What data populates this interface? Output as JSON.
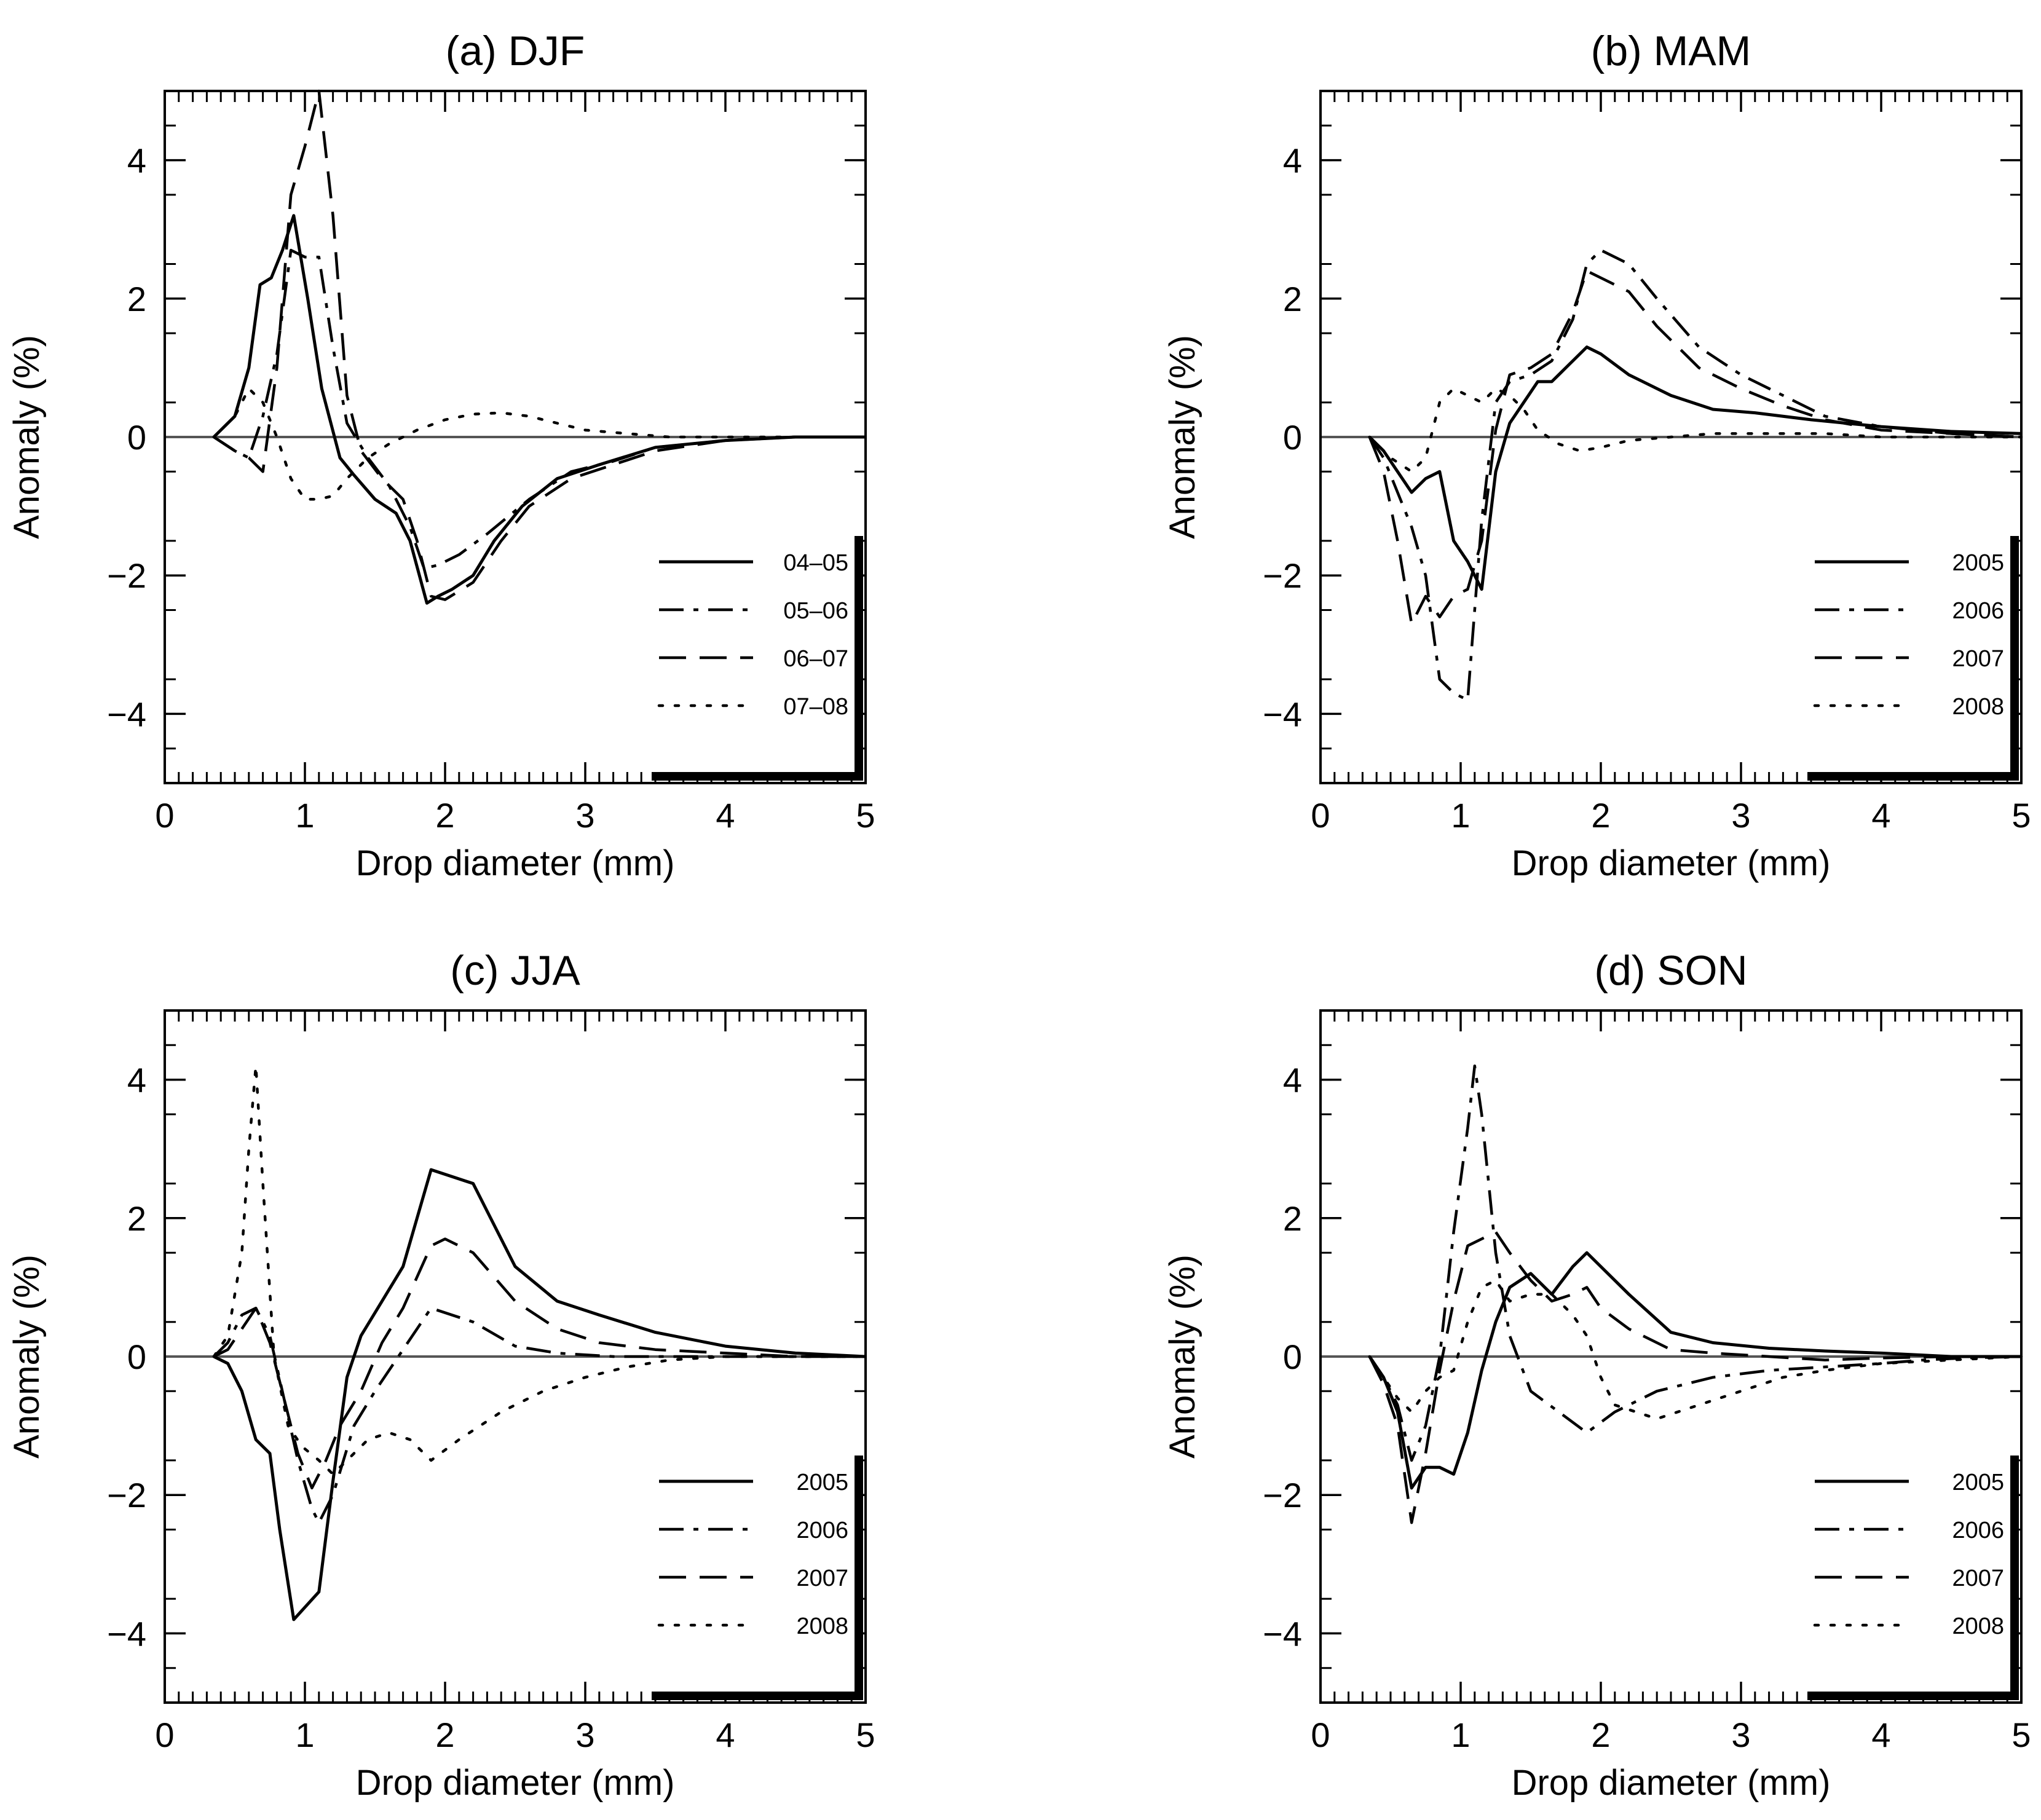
{
  "chart_data": [
    {
      "type": "line",
      "title": "(a) DJF",
      "xlabel": "Drop diameter (mm)",
      "ylabel": "Anomaly (%)",
      "xlim": [
        0,
        5
      ],
      "ylim": [
        -5,
        5
      ],
      "xticks": [
        "0",
        "1",
        "2",
        "3",
        "4",
        "5"
      ],
      "yticks": [
        "−4",
        "−2",
        "0",
        "2",
        "4"
      ],
      "zero_line": true,
      "legend_position": "lower-right",
      "series": [
        {
          "name": "04–05",
          "style": "solid",
          "x": [
            0.35,
            0.5,
            0.6,
            0.68,
            0.76,
            0.84,
            0.92,
            1.02,
            1.12,
            1.25,
            1.35,
            1.5,
            1.65,
            1.75,
            1.87,
            1.95,
            2.05,
            2.2,
            2.35,
            2.55,
            2.8,
            3.1,
            3.5,
            4.0,
            4.5,
            5.0
          ],
          "y": [
            0.0,
            0.3,
            1.0,
            2.2,
            2.3,
            2.7,
            3.2,
            2.0,
            0.7,
            -0.3,
            -0.55,
            -0.9,
            -1.1,
            -1.5,
            -2.4,
            -2.3,
            -2.2,
            -2.0,
            -1.5,
            -1.0,
            -0.6,
            -0.4,
            -0.15,
            -0.05,
            0.0,
            0.0
          ]
        },
        {
          "name": "05–06",
          "style": "dashdot",
          "x": [
            0.35,
            0.5,
            0.6,
            0.7,
            0.8,
            0.9,
            1.0,
            1.1,
            1.2,
            1.3,
            1.45,
            1.6,
            1.75,
            1.85,
            1.95,
            2.1,
            2.3,
            2.6,
            2.9,
            3.2,
            3.5,
            4.0,
            4.5,
            5.0
          ],
          "y": [
            0.0,
            -0.2,
            -0.3,
            0.3,
            1.2,
            2.7,
            2.6,
            2.6,
            1.3,
            0.2,
            -0.3,
            -0.7,
            -1.3,
            -1.9,
            -1.85,
            -1.7,
            -1.4,
            -0.9,
            -0.5,
            -0.35,
            -0.15,
            -0.05,
            0.0,
            0.0
          ]
        },
        {
          "name": "06–07",
          "style": "dashed",
          "x": [
            0.35,
            0.5,
            0.6,
            0.7,
            0.8,
            0.9,
            1.0,
            1.1,
            1.2,
            1.3,
            1.4,
            1.55,
            1.7,
            1.8,
            1.9,
            2.0,
            2.2,
            2.4,
            2.6,
            2.9,
            3.2,
            3.5,
            4.0,
            4.5,
            5.0
          ],
          "y": [
            0.0,
            -0.2,
            -0.3,
            -0.5,
            1.0,
            3.5,
            4.2,
            5.0,
            3.2,
            0.6,
            -0.2,
            -0.6,
            -0.9,
            -1.5,
            -2.3,
            -2.35,
            -2.1,
            -1.5,
            -1.0,
            -0.6,
            -0.4,
            -0.2,
            -0.05,
            0.0,
            0.0
          ]
        },
        {
          "name": "07–08",
          "style": "dotted",
          "x": [
            0.35,
            0.5,
            0.6,
            0.7,
            0.8,
            0.9,
            1.0,
            1.1,
            1.2,
            1.3,
            1.45,
            1.6,
            1.8,
            2.0,
            2.2,
            2.4,
            2.6,
            2.8,
            3.0,
            3.3,
            3.6,
            4.0,
            4.5,
            5.0
          ],
          "y": [
            0.0,
            0.3,
            0.7,
            0.5,
            0.0,
            -0.6,
            -0.9,
            -0.9,
            -0.85,
            -0.6,
            -0.3,
            -0.1,
            0.1,
            0.25,
            0.33,
            0.35,
            0.3,
            0.2,
            0.1,
            0.05,
            0.0,
            0.0,
            0.0,
            0.0
          ]
        }
      ]
    },
    {
      "type": "line",
      "title": "(b) MAM",
      "xlabel": "Drop diameter (mm)",
      "ylabel": "Anomaly (%)",
      "xlim": [
        0,
        5
      ],
      "ylim": [
        -5,
        5
      ],
      "xticks": [
        "0",
        "1",
        "2",
        "3",
        "4",
        "5"
      ],
      "yticks": [
        "−4",
        "−2",
        "0",
        "2",
        "4"
      ],
      "zero_line": true,
      "legend_position": "lower-right",
      "series": [
        {
          "name": "2005",
          "style": "solid",
          "x": [
            0.35,
            0.45,
            0.55,
            0.65,
            0.75,
            0.85,
            0.95,
            1.05,
            1.15,
            1.25,
            1.35,
            1.45,
            1.55,
            1.65,
            1.75,
            1.9,
            2.0,
            2.2,
            2.5,
            2.8,
            3.1,
            3.5,
            4.0,
            4.5,
            5.0
          ],
          "y": [
            0.0,
            -0.2,
            -0.5,
            -0.8,
            -0.6,
            -0.5,
            -1.5,
            -1.8,
            -2.2,
            -0.5,
            0.2,
            0.5,
            0.8,
            0.8,
            1.0,
            1.3,
            1.2,
            0.9,
            0.6,
            0.4,
            0.35,
            0.25,
            0.15,
            0.08,
            0.05
          ]
        },
        {
          "name": "2006",
          "style": "dashdot",
          "x": [
            0.35,
            0.45,
            0.55,
            0.65,
            0.75,
            0.85,
            0.95,
            1.05,
            1.15,
            1.25,
            1.35,
            1.5,
            1.65,
            1.8,
            1.9,
            2.0,
            2.2,
            2.4,
            2.7,
            3.0,
            3.3,
            3.6,
            4.0,
            4.5,
            5.0
          ],
          "y": [
            0.0,
            -0.3,
            -0.8,
            -1.3,
            -2.0,
            -3.5,
            -3.7,
            -3.8,
            -1.2,
            0.5,
            0.8,
            0.9,
            1.1,
            1.7,
            2.5,
            2.7,
            2.5,
            2.0,
            1.3,
            0.9,
            0.6,
            0.3,
            0.15,
            0.05,
            0.0
          ]
        },
        {
          "name": "2007",
          "style": "dashed",
          "x": [
            0.35,
            0.45,
            0.55,
            0.65,
            0.75,
            0.85,
            0.95,
            1.05,
            1.15,
            1.25,
            1.35,
            1.5,
            1.65,
            1.8,
            1.9,
            2.0,
            2.2,
            2.4,
            2.7,
            3.0,
            3.3,
            3.6,
            4.0,
            4.5,
            5.0
          ],
          "y": [
            0.0,
            -0.5,
            -1.5,
            -2.7,
            -2.3,
            -2.6,
            -2.3,
            -2.2,
            -1.5,
            0.1,
            0.9,
            1.0,
            1.2,
            1.8,
            2.4,
            2.3,
            2.1,
            1.6,
            1.0,
            0.7,
            0.45,
            0.25,
            0.1,
            0.05,
            0.0
          ]
        },
        {
          "name": "2008",
          "style": "dotted",
          "x": [
            0.35,
            0.5,
            0.65,
            0.75,
            0.85,
            0.95,
            1.05,
            1.15,
            1.25,
            1.35,
            1.45,
            1.55,
            1.7,
            1.85,
            2.0,
            2.2,
            2.5,
            2.8,
            3.2,
            3.6,
            4.0,
            4.5,
            5.0
          ],
          "y": [
            0.0,
            -0.3,
            -0.5,
            -0.3,
            0.5,
            0.7,
            0.6,
            0.5,
            0.7,
            0.6,
            0.4,
            0.1,
            -0.1,
            -0.2,
            -0.15,
            -0.05,
            0.0,
            0.05,
            0.05,
            0.05,
            0.0,
            0.0,
            0.0
          ]
        }
      ]
    },
    {
      "type": "line",
      "title": "(c) JJA",
      "xlabel": "Drop diameter (mm)",
      "ylabel": "Anomaly (%)",
      "xlim": [
        0,
        5
      ],
      "ylim": [
        -5,
        5
      ],
      "xticks": [
        "0",
        "1",
        "2",
        "3",
        "4",
        "5"
      ],
      "yticks": [
        "−4",
        "−2",
        "0",
        "2",
        "4"
      ],
      "zero_line": true,
      "legend_position": "lower-right",
      "series": [
        {
          "name": "2005",
          "style": "solid",
          "x": [
            0.35,
            0.45,
            0.55,
            0.65,
            0.75,
            0.82,
            0.92,
            1.1,
            1.2,
            1.3,
            1.4,
            1.55,
            1.7,
            1.9,
            2.2,
            2.5,
            2.8,
            3.1,
            3.5,
            4.0,
            4.5,
            5.0
          ],
          "y": [
            0.0,
            -0.1,
            -0.5,
            -1.2,
            -1.4,
            -2.5,
            -3.8,
            -3.4,
            -1.8,
            -0.3,
            0.3,
            0.8,
            1.3,
            2.7,
            2.5,
            1.3,
            0.8,
            0.6,
            0.35,
            0.15,
            0.05,
            0.0
          ]
        },
        {
          "name": "2006",
          "style": "dashdot",
          "x": [
            0.35,
            0.45,
            0.55,
            0.65,
            0.75,
            0.85,
            0.95,
            1.05,
            1.1,
            1.2,
            1.35,
            1.5,
            1.7,
            1.9,
            2.2,
            2.5,
            2.8,
            3.2,
            3.6,
            4.0,
            4.5,
            5.0
          ],
          "y": [
            0.0,
            0.2,
            0.6,
            0.7,
            0.3,
            -0.6,
            -1.5,
            -2.2,
            -2.4,
            -2.0,
            -1.0,
            -0.5,
            0.1,
            0.7,
            0.5,
            0.15,
            0.05,
            0.0,
            0.0,
            0.0,
            0.0,
            0.0
          ]
        },
        {
          "name": "2007",
          "style": "dashed",
          "x": [
            0.35,
            0.45,
            0.55,
            0.65,
            0.75,
            0.85,
            0.95,
            1.05,
            1.15,
            1.25,
            1.4,
            1.55,
            1.7,
            1.9,
            2.0,
            2.2,
            2.5,
            2.8,
            3.1,
            3.5,
            4.0,
            4.5,
            5.0
          ],
          "y": [
            0.0,
            0.1,
            0.4,
            0.7,
            0.2,
            -0.6,
            -1.4,
            -1.9,
            -1.5,
            -1.0,
            -0.5,
            0.2,
            0.7,
            1.6,
            1.7,
            1.5,
            0.8,
            0.4,
            0.2,
            0.1,
            0.05,
            0.0,
            0.0
          ]
        },
        {
          "name": "2008",
          "style": "dotted",
          "x": [
            0.35,
            0.45,
            0.55,
            0.6,
            0.65,
            0.7,
            0.78,
            0.88,
            0.98,
            1.1,
            1.2,
            1.3,
            1.45,
            1.6,
            1.75,
            1.9,
            2.1,
            2.4,
            2.7,
            3.0,
            3.3,
            3.6,
            4.0,
            4.5,
            5.0
          ],
          "y": [
            0.0,
            0.3,
            1.5,
            3.0,
            4.2,
            2.5,
            0.0,
            -1.0,
            -1.3,
            -1.5,
            -1.7,
            -1.5,
            -1.2,
            -1.1,
            -1.2,
            -1.5,
            -1.2,
            -0.8,
            -0.5,
            -0.3,
            -0.15,
            -0.05,
            0.0,
            0.0,
            0.0
          ]
        }
      ]
    },
    {
      "type": "line",
      "title": "(d) SON",
      "xlabel": "Drop diameter (mm)",
      "ylabel": "Anomaly (%)",
      "xlim": [
        0,
        5
      ],
      "ylim": [
        -5,
        5
      ],
      "xticks": [
        "0",
        "1",
        "2",
        "3",
        "4",
        "5"
      ],
      "yticks": [
        "−4",
        "−2",
        "0",
        "2",
        "4"
      ],
      "zero_line": true,
      "legend_position": "lower-right",
      "series": [
        {
          "name": "2005",
          "style": "solid",
          "x": [
            0.35,
            0.45,
            0.55,
            0.65,
            0.75,
            0.85,
            0.95,
            1.05,
            1.15,
            1.25,
            1.35,
            1.5,
            1.65,
            1.8,
            1.9,
            2.0,
            2.2,
            2.5,
            2.8,
            3.2,
            3.6,
            4.0,
            4.5,
            5.0
          ],
          "y": [
            0.0,
            -0.3,
            -0.8,
            -1.9,
            -1.6,
            -1.6,
            -1.7,
            -1.1,
            -0.2,
            0.5,
            1.0,
            1.2,
            0.9,
            1.3,
            1.5,
            1.3,
            0.9,
            0.35,
            0.2,
            0.12,
            0.08,
            0.05,
            0.0,
            0.0
          ]
        },
        {
          "name": "2006",
          "style": "dashdot",
          "x": [
            0.35,
            0.45,
            0.55,
            0.65,
            0.75,
            0.85,
            0.95,
            1.05,
            1.1,
            1.15,
            1.25,
            1.35,
            1.5,
            1.7,
            1.9,
            2.1,
            2.4,
            2.8,
            3.2,
            3.6,
            4.0,
            4.3,
            4.6,
            5.0
          ],
          "y": [
            0.0,
            -0.3,
            -0.7,
            -1.5,
            -1.0,
            0.0,
            1.8,
            3.3,
            4.2,
            3.5,
            1.5,
            0.3,
            -0.5,
            -0.8,
            -1.1,
            -0.8,
            -0.5,
            -0.3,
            -0.2,
            -0.15,
            -0.1,
            -0.05,
            -0.02,
            0.0
          ]
        },
        {
          "name": "2007",
          "style": "dashed",
          "x": [
            0.35,
            0.45,
            0.55,
            0.65,
            0.75,
            0.85,
            0.95,
            1.05,
            1.15,
            1.25,
            1.35,
            1.5,
            1.65,
            1.8,
            1.9,
            2.0,
            2.2,
            2.5,
            2.8,
            3.2,
            3.6,
            4.0,
            4.5,
            5.0
          ],
          "y": [
            0.0,
            -0.4,
            -1.0,
            -2.4,
            -1.4,
            -0.2,
            0.8,
            1.6,
            1.7,
            1.8,
            1.5,
            1.1,
            0.8,
            0.9,
            1.0,
            0.7,
            0.4,
            0.1,
            0.05,
            0.0,
            -0.05,
            -0.02,
            0.0,
            0.0
          ]
        },
        {
          "name": "2008",
          "style": "dotted",
          "x": [
            0.35,
            0.45,
            0.55,
            0.65,
            0.75,
            0.85,
            0.95,
            1.05,
            1.15,
            1.25,
            1.35,
            1.5,
            1.65,
            1.8,
            1.9,
            2.0,
            2.1,
            2.4,
            2.7,
            3.0,
            3.3,
            3.6,
            4.0,
            4.5,
            5.0
          ],
          "y": [
            0.0,
            -0.3,
            -0.6,
            -0.8,
            -0.5,
            -0.3,
            -0.2,
            0.5,
            1.0,
            1.1,
            0.8,
            0.9,
            0.9,
            0.6,
            0.3,
            -0.3,
            -0.7,
            -0.9,
            -0.7,
            -0.5,
            -0.3,
            -0.2,
            -0.1,
            -0.05,
            0.0
          ]
        }
      ]
    }
  ]
}
